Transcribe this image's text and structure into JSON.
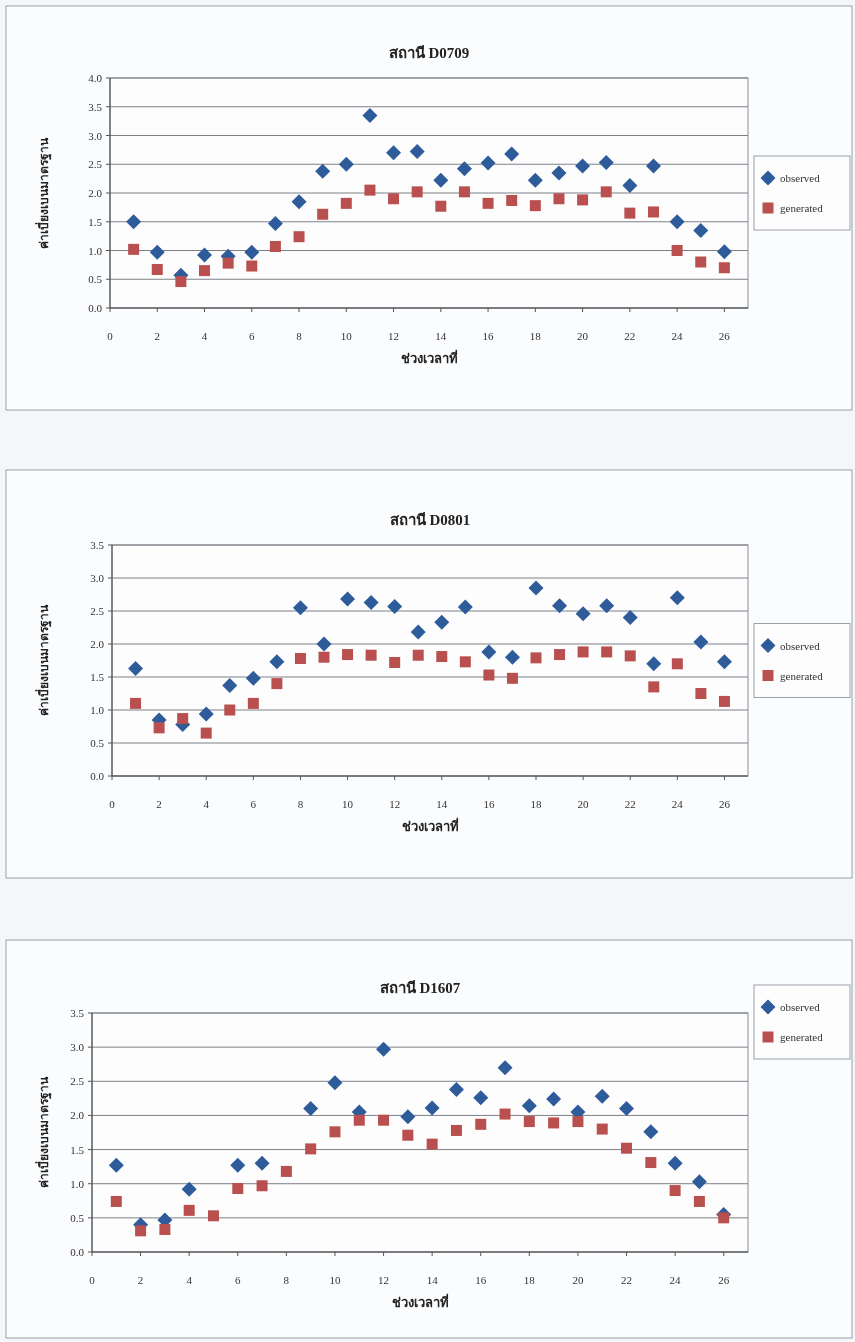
{
  "chart_data": [
    {
      "type": "scatter",
      "title": "สถานี D0709",
      "xlabel": "ช่วงเวลาที่",
      "ylabel": "ค่าเบี่ยงเบนมาตรฐาน",
      "x": [
        1,
        2,
        3,
        4,
        5,
        6,
        7,
        8,
        9,
        10,
        11,
        12,
        13,
        14,
        15,
        16,
        17,
        18,
        19,
        20,
        21,
        22,
        23,
        24,
        25,
        26
      ],
      "series": [
        {
          "name": "observed",
          "color": "#2e5c9a",
          "marker": "diamond",
          "values": [
            1.5,
            0.97,
            0.57,
            0.92,
            0.9,
            0.97,
            1.47,
            1.85,
            2.38,
            2.5,
            3.35,
            2.7,
            2.72,
            2.22,
            2.42,
            2.52,
            2.68,
            2.22,
            2.35,
            2.47,
            2.53,
            2.13,
            2.47,
            1.5,
            1.35,
            0.98
          ]
        },
        {
          "name": "generated",
          "color": "#b9504f",
          "marker": "square",
          "values": [
            1.02,
            0.67,
            0.46,
            0.65,
            0.78,
            0.73,
            1.07,
            1.24,
            1.63,
            1.82,
            2.05,
            1.9,
            2.02,
            1.77,
            2.02,
            1.82,
            1.87,
            1.78,
            1.9,
            1.88,
            2.02,
            1.65,
            1.67,
            1.0,
            0.8,
            0.7
          ]
        }
      ],
      "xlim": [
        0,
        27
      ],
      "xticks": [
        0,
        2,
        4,
        6,
        8,
        10,
        12,
        14,
        16,
        18,
        20,
        22,
        24,
        26
      ],
      "ylim": [
        0,
        4
      ],
      "yticks": [
        {
          "value": 0,
          "label": "0.0"
        },
        {
          "value": 0.5,
          "label": "0.5"
        },
        {
          "value": 1,
          "label": "1.0"
        },
        {
          "value": 1.5,
          "label": "1.5"
        },
        {
          "value": 2,
          "label": "2.0"
        },
        {
          "value": 2.5,
          "label": "2.5"
        },
        {
          "value": 3,
          "label": "3.0"
        },
        {
          "value": 3.5,
          "label": "3.5"
        },
        {
          "value": 4,
          "label": "4.0"
        }
      ],
      "grid": "y",
      "legend": "right"
    },
    {
      "type": "scatter",
      "title": "สถานี D0801",
      "xlabel": "ช่วงเวลาที่",
      "ylabel": "ค่าเบี่ยงเบนมาตรฐาน",
      "x": [
        1,
        2,
        3,
        4,
        5,
        6,
        7,
        8,
        9,
        10,
        11,
        12,
        13,
        14,
        15,
        16,
        17,
        18,
        19,
        20,
        21,
        22,
        23,
        24,
        25,
        26
      ],
      "series": [
        {
          "name": "observed",
          "color": "#2e5c9a",
          "marker": "diamond",
          "values": [
            1.63,
            0.85,
            0.78,
            0.94,
            1.37,
            1.48,
            1.73,
            2.55,
            2.0,
            2.68,
            2.63,
            2.57,
            2.18,
            2.33,
            2.56,
            1.88,
            1.8,
            2.85,
            2.58,
            2.46,
            2.58,
            2.4,
            1.7,
            2.7,
            2.03,
            1.73
          ]
        },
        {
          "name": "generated",
          "color": "#b9504f",
          "marker": "square",
          "values": [
            1.1,
            0.73,
            0.87,
            0.65,
            1.0,
            1.1,
            1.4,
            1.78,
            1.8,
            1.84,
            1.83,
            1.72,
            1.83,
            1.81,
            1.73,
            1.53,
            1.48,
            1.79,
            1.84,
            1.88,
            1.88,
            1.82,
            1.35,
            1.7,
            1.25,
            1.13
          ]
        }
      ],
      "xlim": [
        0,
        27
      ],
      "xticks": [
        0,
        2,
        4,
        6,
        8,
        10,
        12,
        14,
        16,
        18,
        20,
        22,
        24,
        26
      ],
      "ylim": [
        0,
        3.5
      ],
      "yticks": [
        {
          "value": 0,
          "label": "0.0"
        },
        {
          "value": 0.5,
          "label": "0.5"
        },
        {
          "value": 1,
          "label": "1.0"
        },
        {
          "value": 1.5,
          "label": "1.5"
        },
        {
          "value": 2,
          "label": "2.0"
        },
        {
          "value": 2.5,
          "label": "2.5"
        },
        {
          "value": 3,
          "label": "3.0"
        },
        {
          "value": 3.5,
          "label": "3.5"
        }
      ],
      "grid": "y",
      "legend": "right"
    },
    {
      "type": "scatter",
      "title": "สถานี D1607",
      "xlabel": "ช่วงเวลาที่",
      "ylabel": "ค่าเบี่ยงเบนมาตรฐาน",
      "x": [
        1,
        2,
        3,
        4,
        5,
        6,
        7,
        8,
        9,
        10,
        11,
        12,
        13,
        14,
        15,
        16,
        17,
        18,
        19,
        20,
        21,
        22,
        23,
        24,
        25,
        26
      ],
      "series": [
        {
          "name": "observed",
          "color": "#2e5c9a",
          "marker": "diamond",
          "values": [
            1.27,
            0.4,
            0.47,
            0.92,
            null,
            1.27,
            1.3,
            null,
            2.1,
            2.48,
            2.05,
            2.97,
            1.98,
            2.11,
            2.38,
            2.26,
            2.7,
            2.14,
            2.24,
            2.05,
            2.28,
            2.1,
            1.76,
            1.3,
            1.03,
            0.55
          ]
        },
        {
          "name": "generated",
          "color": "#b9504f",
          "marker": "square",
          "values": [
            0.74,
            0.31,
            0.33,
            0.61,
            0.53,
            0.93,
            0.97,
            1.18,
            1.51,
            1.76,
            1.93,
            1.93,
            1.71,
            1.58,
            1.78,
            1.87,
            2.02,
            1.91,
            1.89,
            1.91,
            1.8,
            1.52,
            1.31,
            0.9,
            0.74,
            0.5
          ]
        }
      ],
      "xlim": [
        0,
        27
      ],
      "xticks": [
        0,
        2,
        4,
        6,
        8,
        10,
        12,
        14,
        16,
        18,
        20,
        22,
        24,
        26
      ],
      "ylim": [
        0,
        3.5
      ],
      "yticks": [
        {
          "value": 0,
          "label": "0.0"
        },
        {
          "value": 0.5,
          "label": "0.5"
        },
        {
          "value": 1,
          "label": "1.0"
        },
        {
          "value": 1.5,
          "label": "1.5"
        },
        {
          "value": 2,
          "label": "2.0"
        },
        {
          "value": 2.5,
          "label": "2.5"
        },
        {
          "value": 3,
          "label": "3.0"
        },
        {
          "value": 3.5,
          "label": "3.5"
        }
      ],
      "grid": "y",
      "legend": "top right"
    }
  ]
}
